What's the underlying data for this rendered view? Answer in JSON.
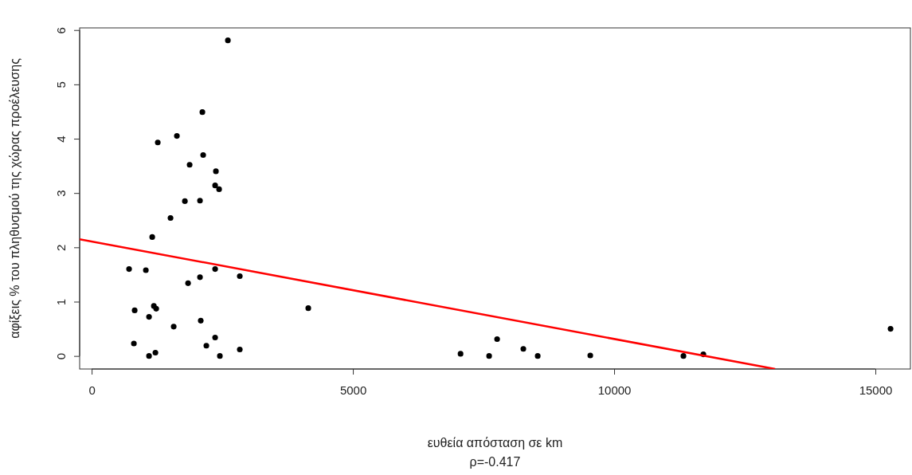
{
  "chart_data": {
    "type": "scatter",
    "xlabel": "ευθεία απόσταση σε km",
    "ylabel": "αφίξεις % του πληθυσμού της χώρας προέλευσης",
    "annotations": [
      "ρ=-0.417"
    ],
    "xlim": [
      -230,
      15670
    ],
    "ylim": [
      -0.24,
      6.04
    ],
    "xticks": [
      0,
      5000,
      10000,
      15000
    ],
    "yticks": [
      0,
      1,
      2,
      3,
      4,
      5,
      6
    ],
    "grid": false,
    "series": [
      {
        "marker": "circle",
        "color": "#000000",
        "x": [
          2607,
          2119,
          1631,
          1265,
          2134,
          1875,
          2378,
          2363,
          2439,
          1784,
          2073,
          1509,
          1159,
          716,
          1037,
          2363,
          2835,
          2073,
          1845,
          4146,
          823,
          1190,
          1235,
          1098,
          2088,
          1570,
          808,
          2363,
          2195,
          1098,
          1220,
          2454,
          2835,
          7060,
          7607,
          7760,
          8262,
          8537,
          9543,
          11326,
          11707,
          15290
        ],
        "values": [
          5.81,
          4.49,
          4.05,
          3.93,
          3.7,
          3.52,
          3.4,
          3.14,
          3.07,
          2.85,
          2.86,
          2.54,
          2.19,
          1.6,
          1.58,
          1.6,
          1.47,
          1.45,
          1.34,
          0.88,
          0.84,
          0.92,
          0.87,
          0.72,
          0.65,
          0.54,
          0.23,
          0.34,
          0.19,
          0,
          0.06,
          0,
          0.12,
          0.04,
          0,
          0.31,
          0.13,
          0,
          0.01,
          0,
          0.03,
          0.5
        ]
      },
      {
        "type": "line",
        "color": "#ff0000",
        "line_style": "solid",
        "x": [
          -230,
          13080
        ],
        "values": [
          2.15,
          -0.24
        ]
      }
    ]
  }
}
